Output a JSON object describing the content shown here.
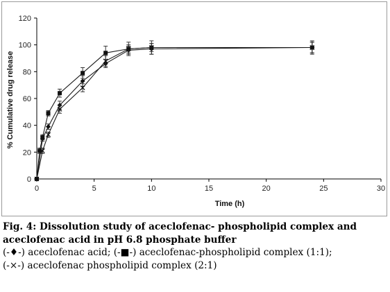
{
  "chart_data": {
    "type": "line",
    "title": "",
    "xlabel": "Time (h)",
    "ylabel": "% Cumulative drug release",
    "xlim": [
      0,
      30
    ],
    "ylim": [
      0,
      120
    ],
    "xticks": [
      0,
      5,
      10,
      15,
      20,
      25,
      30
    ],
    "yticks": [
      0,
      20,
      40,
      60,
      80,
      100,
      120
    ],
    "grid": false,
    "legend": "none",
    "series": [
      {
        "marker": "diamond",
        "x": [
          0,
          0.5,
          1,
          2,
          4,
          6,
          8,
          10,
          24
        ],
        "y": [
          0,
          30,
          39,
          55,
          73,
          86,
          96,
          97,
          98
        ],
        "err": [
          0,
          2,
          2,
          3,
          4,
          3,
          3,
          4,
          4
        ]
      },
      {
        "marker": "square",
        "x": [
          0,
          0.25,
          0.5,
          1,
          2,
          4,
          6,
          8,
          10,
          24
        ],
        "y": [
          0,
          21,
          31,
          49,
          64,
          79,
          94,
          97,
          98,
          98
        ],
        "err": [
          0,
          2,
          2,
          2,
          3,
          4,
          5,
          5,
          5,
          5
        ]
      },
      {
        "marker": "cross",
        "x": [
          0,
          0.5,
          1,
          2,
          4,
          6,
          8,
          10,
          24
        ],
        "y": [
          0,
          21,
          33,
          52,
          68,
          88,
          97,
          98,
          98
        ],
        "err": [
          0,
          2,
          2,
          3,
          3,
          4,
          3,
          3,
          4
        ]
      }
    ]
  },
  "caption": {
    "fig_label": "Fig. 4",
    "line1": ": Dissolution study of aceclofenac- phospholipid complex and",
    "line2": "aceclofenac acid in pH 6.8 phosphate buffer",
    "line3": "(-♦-) aceclofenac acid; (-■-) aceclofenac-phospholipid complex (1:1);",
    "line4": "(-×-) aceclofenac phospholipid complex (2:1)"
  }
}
